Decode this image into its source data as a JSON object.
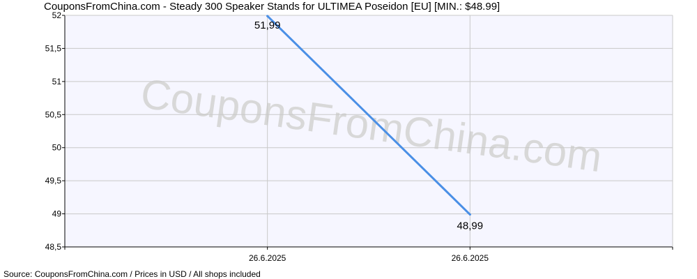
{
  "title": "CouponsFromChina.com - Steady 300 Speaker Stands for ULTIMEA Poseidon [EU] [MIN.: $48.99]",
  "footer": "Source: CouponsFromChina.com / Prices in USD / All shops included",
  "watermark": "CouponsFromChina.com",
  "colors": {
    "line": "#4a8fe6",
    "plot_bg": "#f6f6ff",
    "grid": "#c8c8c8",
    "axis": "#000000",
    "watermark": "#d8d8d8"
  },
  "chart_data": {
    "type": "line",
    "title": "CouponsFromChina.com - Steady 300 Speaker Stands for ULTIMEA Poseidon [EU] [MIN.: $48.99]",
    "xlabel": "",
    "ylabel": "",
    "x_categories": [
      "",
      "26.6.2025",
      "26.6.2025",
      ""
    ],
    "y_ticks": [
      48.5,
      49,
      49.5,
      50,
      50.5,
      51,
      51.5,
      52
    ],
    "y_tick_labels": [
      "48,5",
      "49",
      "49,5",
      "50",
      "50,5",
      "51",
      "51,5",
      "52"
    ],
    "ylim": [
      48.5,
      52
    ],
    "grid": true,
    "series": [
      {
        "points": [
          {
            "x_index": 1,
            "y": 51.99,
            "label": "51,99"
          },
          {
            "x_index": 2,
            "y": 48.99,
            "label": "48,99"
          }
        ]
      }
    ]
  }
}
